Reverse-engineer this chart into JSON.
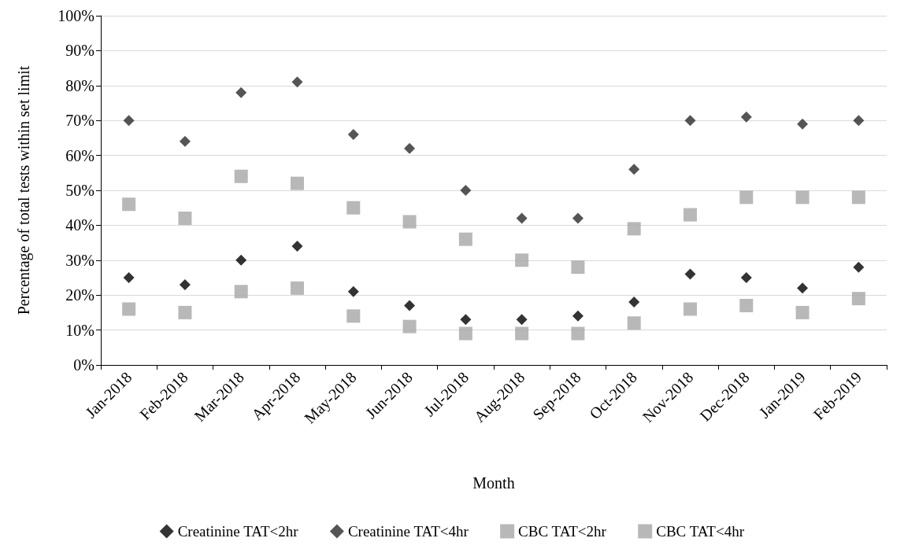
{
  "chart_data": {
    "type": "scatter",
    "xlabel": "Month",
    "ylabel": "Percentage of total tests within set limit",
    "categories": [
      "Jan-2018",
      "Feb-2018",
      "Mar-2018",
      "Apr-2018",
      "May-2018",
      "Jun-2018",
      "Jul-2018",
      "Aug-2018",
      "Sep-2018",
      "Oct-2018",
      "Nov-2018",
      "Dec-2018",
      "Jan-2019",
      "Feb-2019"
    ],
    "series": [
      {
        "name": "Creatinine TAT<2hr",
        "color": "#000000",
        "marker": "diamond",
        "values": [
          25,
          23,
          30,
          34,
          21,
          17,
          13,
          13,
          14,
          18,
          26,
          25,
          22,
          28
        ]
      },
      {
        "name": "Creatinine TAT<4hr",
        "color": "#2b2b2b",
        "marker": "diamond",
        "values": [
          70,
          64,
          78,
          81,
          66,
          62,
          50,
          42,
          42,
          56,
          70,
          71,
          69,
          70
        ]
      },
      {
        "name": "CBC TAT<2hr",
        "color": "#a6a6a6",
        "marker": "square",
        "values": [
          16,
          15,
          21,
          22,
          14,
          11,
          9,
          9,
          9,
          12,
          16,
          17,
          15,
          19
        ]
      },
      {
        "name": "CBC TAT<4hr",
        "color": "#a6a6a6",
        "marker": "square",
        "values": [
          46,
          42,
          54,
          52,
          45,
          41,
          36,
          30,
          28,
          39,
          43,
          48,
          48,
          48
        ]
      }
    ],
    "ylim": [
      0,
      100
    ],
    "yticks": [
      {
        "value": 0,
        "label": "0%"
      },
      {
        "value": 10,
        "label": "10%"
      },
      {
        "value": 20,
        "label": "20%"
      },
      {
        "value": 30,
        "label": "30%"
      },
      {
        "value": 40,
        "label": "40%"
      },
      {
        "value": 50,
        "label": "50%"
      },
      {
        "value": 60,
        "label": "60%"
      },
      {
        "value": 70,
        "label": "70%"
      },
      {
        "value": 80,
        "label": "80%"
      },
      {
        "value": 90,
        "label": "90%"
      },
      {
        "value": 100,
        "label": "100%"
      }
    ],
    "grid": "y",
    "legend": "bottom"
  }
}
